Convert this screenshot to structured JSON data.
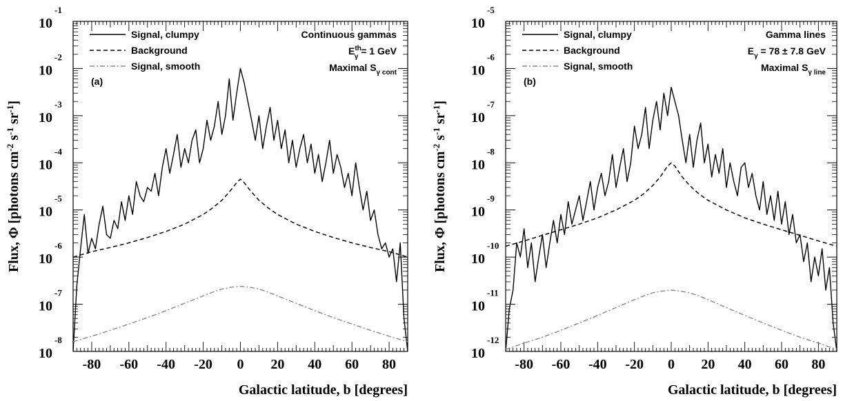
{
  "chart_data": [
    {
      "type": "line",
      "panel_label": "(a)",
      "xlabel": "Galactic latitude, b [degrees]",
      "ylabel": {
        "base": "Flux, Φ [photons cm",
        "e1": "-2",
        "m1": " s",
        "e2": "-1",
        "m2": " sr",
        "e3": "-1",
        "end": "]"
      },
      "xlim": [
        -90,
        90
      ],
      "ylim": [
        1e-08,
        0.1
      ],
      "yscale": "log",
      "x_ticks": [
        -80,
        -60,
        -40,
        -20,
        0,
        20,
        40,
        60,
        80
      ],
      "x_tick_labels": [
        "-80",
        "-60",
        "-40",
        "-20",
        "0",
        "20",
        "40",
        "60",
        "80"
      ],
      "y_ticks": [
        {
          "base": "10",
          "exp": "-8"
        },
        {
          "base": "10",
          "exp": "-7"
        },
        {
          "base": "10",
          "exp": "-6"
        },
        {
          "base": "10",
          "exp": "-5"
        },
        {
          "base": "10",
          "exp": "-4"
        },
        {
          "base": "10",
          "exp": "-3"
        },
        {
          "base": "10",
          "exp": "-2"
        },
        {
          "base": "10",
          "exp": "-1"
        }
      ],
      "annotation": {
        "line1": "Continuous gammas",
        "line2": {
          "pre": "E",
          "sup": "th",
          "sub": "γ",
          "post": " = 1 GeV"
        },
        "line3": {
          "pre": "Maximal S",
          "sub": "γ cont"
        }
      },
      "series": [
        {
          "name": "Signal, clumpy",
          "style": "solid",
          "color": "#000000",
          "x": [
            -90,
            -88,
            -86,
            -84,
            -82,
            -80,
            -78,
            -76,
            -74,
            -72,
            -70,
            -68,
            -66,
            -64,
            -62,
            -60,
            -58,
            -56,
            -54,
            -52,
            -50,
            -48,
            -46,
            -44,
            -42,
            -40,
            -38,
            -36,
            -34,
            -32,
            -30,
            -28,
            -26,
            -24,
            -22,
            -20,
            -18,
            -16,
            -14,
            -12,
            -10,
            -8,
            -6,
            -4,
            -2,
            0,
            2,
            4,
            6,
            8,
            10,
            12,
            14,
            16,
            18,
            20,
            22,
            24,
            26,
            28,
            30,
            32,
            34,
            36,
            38,
            40,
            42,
            44,
            46,
            48,
            50,
            52,
            54,
            56,
            58,
            60,
            62,
            64,
            66,
            68,
            70,
            72,
            74,
            76,
            78,
            80,
            82,
            84,
            86,
            88,
            90
          ],
          "y": [
            1e-08,
            2.5e-07,
            1.5e-06,
            8e-06,
            1.2e-06,
            2.5e-06,
            1.5e-06,
            5e-06,
            1.2e-05,
            3e-06,
            2.5e-06,
            6e-06,
            4e-06,
            1.5e-05,
            6e-06,
            2e-05,
            8e-06,
            4e-05,
            2e-05,
            1.5e-05,
            3e-05,
            2.5e-05,
            6e-05,
            2e-05,
            8e-05,
            0.0002,
            6e-05,
            0.00015,
            0.0004,
            8e-05,
            0.0002,
            0.0001,
            0.0003,
            0.0005,
            0.0001,
            0.0002,
            0.0008,
            0.0003,
            0.0006,
            0.002,
            0.0004,
            0.001,
            0.006,
            0.0008,
            0.003,
            0.01,
            0.005,
            0.002,
            0.0008,
            0.0003,
            0.001,
            0.0002,
            0.0006,
            0.0015,
            0.0003,
            0.0008,
            0.0002,
            0.0005,
            0.0001,
            0.0003,
            8e-05,
            0.0002,
            0.0004,
            0.0001,
            0.00025,
            6e-05,
            0.00015,
            4e-05,
            0.0001,
            0.0003,
            6e-05,
            0.00015,
            8e-05,
            3e-05,
            6e-05,
            2e-05,
            0.0001,
            3e-05,
            1e-05,
            2.5e-05,
            6e-06,
            1e-05,
            3e-06,
            1.5e-06,
            2e-06,
            1e-06,
            1.5e-06,
            3e-07,
            2e-06,
            5e-08,
            1e-08
          ]
        },
        {
          "name": "Background",
          "style": "dashed",
          "color": "#000000",
          "x": [
            -90,
            -80,
            -70,
            -60,
            -50,
            -40,
            -30,
            -20,
            -15,
            -10,
            -6,
            -4,
            -2,
            0,
            2,
            4,
            6,
            10,
            15,
            20,
            30,
            40,
            50,
            60,
            70,
            80,
            90
          ],
          "y": [
            1e-06,
            1.3e-06,
            1.6e-06,
            2e-06,
            2.6e-06,
            3.5e-06,
            5e-06,
            8e-06,
            1.1e-05,
            1.6e-05,
            2.4e-05,
            3e-05,
            3.8e-05,
            4.5e-05,
            3.8e-05,
            3e-05,
            2.4e-05,
            1.6e-05,
            1.1e-05,
            8e-06,
            5e-06,
            3.5e-06,
            2.6e-06,
            2e-06,
            1.6e-06,
            1.3e-06,
            1e-06
          ]
        },
        {
          "name": "Signal, smooth",
          "style": "dashdot",
          "color": "#888888",
          "x": [
            -90,
            -80,
            -70,
            -60,
            -50,
            -40,
            -30,
            -20,
            -15,
            -10,
            -5,
            0,
            5,
            10,
            15,
            20,
            30,
            40,
            50,
            60,
            70,
            80,
            90
          ],
          "y": [
            1.6e-08,
            2.1e-08,
            2.8e-08,
            3.8e-08,
            5.2e-08,
            7.3e-08,
            1.05e-07,
            1.5e-07,
            1.8e-07,
            2.1e-07,
            2.3e-07,
            2.4e-07,
            2.3e-07,
            2.1e-07,
            1.8e-07,
            1.5e-07,
            1.05e-07,
            7.3e-08,
            5.2e-08,
            3.8e-08,
            2.8e-08,
            2.1e-08,
            1.6e-08
          ]
        }
      ]
    },
    {
      "type": "line",
      "panel_label": "(b)",
      "xlabel": "Galactic latitude, b [degrees]",
      "ylabel": {
        "base": "Flux, Φ [photons cm",
        "e1": "-2",
        "m1": " s",
        "e2": "-1",
        "m2": " sr",
        "e3": "-1",
        "end": "]"
      },
      "xlim": [
        -90,
        90
      ],
      "ylim": [
        1e-12,
        1e-05
      ],
      "yscale": "log",
      "x_ticks": [
        -80,
        -60,
        -40,
        -20,
        0,
        20,
        40,
        60,
        80
      ],
      "x_tick_labels": [
        "-80",
        "-60",
        "-40",
        "-20",
        "0",
        "20",
        "40",
        "60",
        "80"
      ],
      "y_ticks": [
        {
          "base": "10",
          "exp": "-12"
        },
        {
          "base": "10",
          "exp": "-11"
        },
        {
          "base": "10",
          "exp": "-10"
        },
        {
          "base": "10",
          "exp": "-9"
        },
        {
          "base": "10",
          "exp": "-8"
        },
        {
          "base": "10",
          "exp": "-7"
        },
        {
          "base": "10",
          "exp": "-6"
        },
        {
          "base": "10",
          "exp": "-5"
        }
      ],
      "annotation": {
        "line1": "Gamma lines",
        "line2": {
          "pre": "E",
          "sup": "",
          "sub": "γ",
          "post": " = 78 ± 7.8 GeV"
        },
        "line3": {
          "pre": "Maximal S",
          "sub": "γ line"
        }
      },
      "series": [
        {
          "name": "Signal, clumpy",
          "style": "solid",
          "color": "#000000",
          "x": [
            -90,
            -88,
            -86,
            -84,
            -82,
            -80,
            -78,
            -76,
            -74,
            -72,
            -70,
            -68,
            -66,
            -64,
            -62,
            -60,
            -58,
            -56,
            -54,
            -52,
            -50,
            -48,
            -46,
            -44,
            -42,
            -40,
            -38,
            -36,
            -34,
            -32,
            -30,
            -28,
            -26,
            -24,
            -22,
            -20,
            -18,
            -16,
            -14,
            -12,
            -10,
            -8,
            -6,
            -4,
            -2,
            0,
            2,
            4,
            6,
            8,
            10,
            12,
            14,
            16,
            18,
            20,
            22,
            24,
            26,
            28,
            30,
            32,
            34,
            36,
            38,
            40,
            42,
            44,
            46,
            48,
            50,
            52,
            54,
            56,
            58,
            60,
            62,
            64,
            66,
            68,
            70,
            72,
            74,
            76,
            78,
            80,
            82,
            84,
            86,
            88,
            90
          ],
          "y": [
            1e-12,
            8e-12,
            2e-11,
            2e-10,
            1e-10,
            4e-10,
            6e-11,
            2e-10,
            3e-11,
            1e-10,
            3e-10,
            6e-11,
            2e-10,
            6e-10,
            2e-10,
            8e-10,
            3e-10,
            1.5e-09,
            5e-10,
            1e-09,
            2e-09,
            6e-10,
            1.5e-09,
            4e-09,
            1e-09,
            3e-09,
            6e-09,
            2e-09,
            4e-09,
            1.5e-08,
            3e-09,
            8e-09,
            2e-08,
            4e-09,
            1e-08,
            6e-08,
            2e-08,
            4e-08,
            1.5e-07,
            2e-08,
            8e-08,
            2e-07,
            5e-08,
            3e-07,
            1e-07,
            4e-07,
            2e-07,
            1e-07,
            3e-08,
            1e-08,
            4e-08,
            8e-09,
            3e-08,
            7e-08,
            1e-08,
            2.5e-08,
            5e-09,
            1.5e-08,
            6e-09,
            2e-08,
            3e-09,
            1e-08,
            4e-09,
            2e-09,
            8e-09,
            1e-08,
            3e-09,
            6e-09,
            2e-09,
            1e-09,
            4e-09,
            8e-10,
            2e-09,
            6e-10,
            2.5e-09,
            5e-10,
            1.5e-09,
            3e-10,
            8e-10,
            2e-10,
            3e-10,
            8e-11,
            2e-10,
            3e-11,
            1e-10,
            4e-11,
            1.5e-10,
            2e-11,
            6e-11,
            4e-12,
            1e-12
          ]
        },
        {
          "name": "Background",
          "style": "dashed",
          "color": "#000000",
          "x": [
            -90,
            -80,
            -70,
            -60,
            -50,
            -40,
            -30,
            -20,
            -15,
            -10,
            -6,
            -4,
            -2,
            0,
            2,
            4,
            6,
            10,
            15,
            20,
            30,
            40,
            50,
            60,
            70,
            80,
            90
          ],
          "y": [
            1.7e-10,
            2.2e-10,
            2.9e-10,
            3.8e-10,
            5e-10,
            6.8e-10,
            1e-09,
            1.6e-09,
            2.2e-09,
            3.3e-09,
            5e-09,
            6.5e-09,
            8.5e-09,
            1e-08,
            8.5e-09,
            6.5e-09,
            5e-09,
            3.3e-09,
            2.2e-09,
            1.6e-09,
            1e-09,
            6.8e-10,
            5e-10,
            3.8e-10,
            2.9e-10,
            2.2e-10,
            1.7e-10
          ]
        },
        {
          "name": "Signal, smooth",
          "style": "dashdot",
          "color": "#888888",
          "x": [
            -90,
            -80,
            -70,
            -60,
            -50,
            -40,
            -30,
            -20,
            -15,
            -10,
            -5,
            0,
            5,
            10,
            15,
            20,
            30,
            40,
            50,
            60,
            70,
            80,
            90
          ],
          "y": [
            1.1e-12,
            1.5e-12,
            2e-12,
            2.8e-12,
            4e-12,
            5.8e-12,
            8.5e-12,
            1.25e-11,
            1.5e-11,
            1.75e-11,
            1.9e-11,
            2e-11,
            1.9e-11,
            1.75e-11,
            1.5e-11,
            1.25e-11,
            8.5e-12,
            5.8e-12,
            4e-12,
            2.8e-12,
            2e-12,
            1.5e-12,
            1.1e-12
          ]
        }
      ]
    }
  ]
}
